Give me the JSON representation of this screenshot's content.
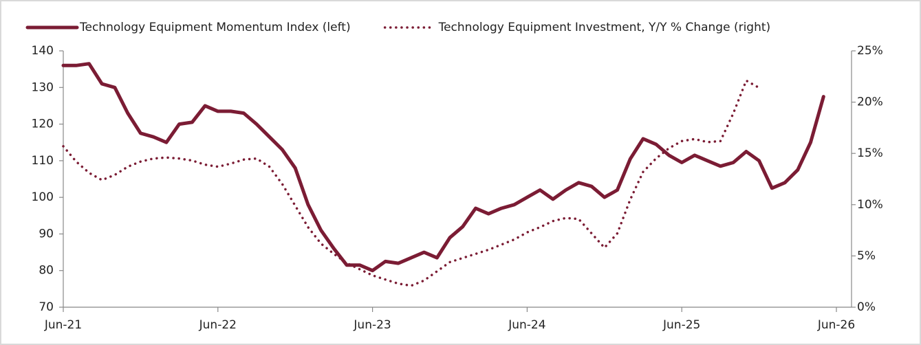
{
  "chart_data": {
    "type": "line",
    "categories": [
      "Jun-21",
      null,
      null,
      null,
      null,
      null,
      null,
      null,
      null,
      null,
      null,
      null,
      "Jun-22",
      null,
      null,
      null,
      null,
      null,
      null,
      null,
      null,
      null,
      null,
      null,
      "Jun-23",
      null,
      null,
      null,
      null,
      null,
      null,
      null,
      null,
      null,
      null,
      null,
      "Jun-24",
      null,
      null,
      null,
      null,
      null,
      null,
      null,
      null,
      null,
      null,
      null,
      "Jun-25",
      null,
      null,
      null,
      null,
      null,
      null,
      null,
      null,
      null,
      null,
      null,
      "Jun-26"
    ],
    "series": [
      {
        "name": "Technology Equipment Momentum Index (left)",
        "color": "#7b1c34",
        "style": "solid",
        "axis": "y",
        "values": [
          136,
          136,
          136.5,
          131,
          130,
          123,
          117.5,
          116.5,
          115,
          120,
          120.5,
          125,
          123.5,
          123.5,
          123,
          120,
          116.5,
          113,
          108,
          98,
          91,
          86,
          81.5,
          81.5,
          80,
          82.5,
          82,
          83.5,
          85,
          83.5,
          89,
          92,
          97,
          95.5,
          97,
          98,
          100,
          102,
          99.5,
          102,
          104,
          103,
          100,
          102,
          110.5,
          116,
          114.5,
          111.5,
          109.5,
          111.5,
          110,
          108.5,
          109.5,
          112.5,
          110,
          102.5,
          104,
          107.5,
          115,
          127.5,
          null
        ]
      },
      {
        "name": "Technology Equipment Investment, Y/Y % Change (right)",
        "color": "#7b1c34",
        "style": "dotted",
        "axis": "y2",
        "values": [
          15.7,
          14.2,
          13.1,
          12.4,
          12.9,
          13.7,
          14.2,
          14.5,
          14.6,
          14.5,
          14.3,
          13.9,
          13.7,
          14.0,
          14.4,
          14.5,
          13.7,
          12.0,
          9.9,
          7.8,
          6.2,
          5.2,
          4.3,
          3.7,
          3.1,
          2.7,
          2.3,
          2.1,
          2.6,
          3.5,
          4.4,
          4.8,
          5.2,
          5.6,
          6.1,
          6.6,
          7.3,
          7.8,
          8.4,
          8.7,
          8.6,
          7.2,
          5.8,
          7.2,
          10.5,
          13.2,
          14.5,
          15.5,
          16.2,
          16.4,
          16.1,
          16.2,
          18.9,
          22.1,
          21.4,
          null,
          null,
          null,
          null,
          null,
          null
        ]
      }
    ],
    "ylim": [
      70,
      140
    ],
    "yticks": [
      70,
      80,
      90,
      100,
      110,
      120,
      130,
      140
    ],
    "y2lim": [
      0,
      25
    ],
    "y2ticks": [
      {
        "value": 0,
        "label": "0%"
      },
      {
        "value": 5,
        "label": "5%"
      },
      {
        "value": 10,
        "label": "10%"
      },
      {
        "value": 15,
        "label": "15%"
      },
      {
        "value": 20,
        "label": "20%"
      },
      {
        "value": 25,
        "label": "25%"
      }
    ],
    "legend": "top",
    "grid": false
  }
}
